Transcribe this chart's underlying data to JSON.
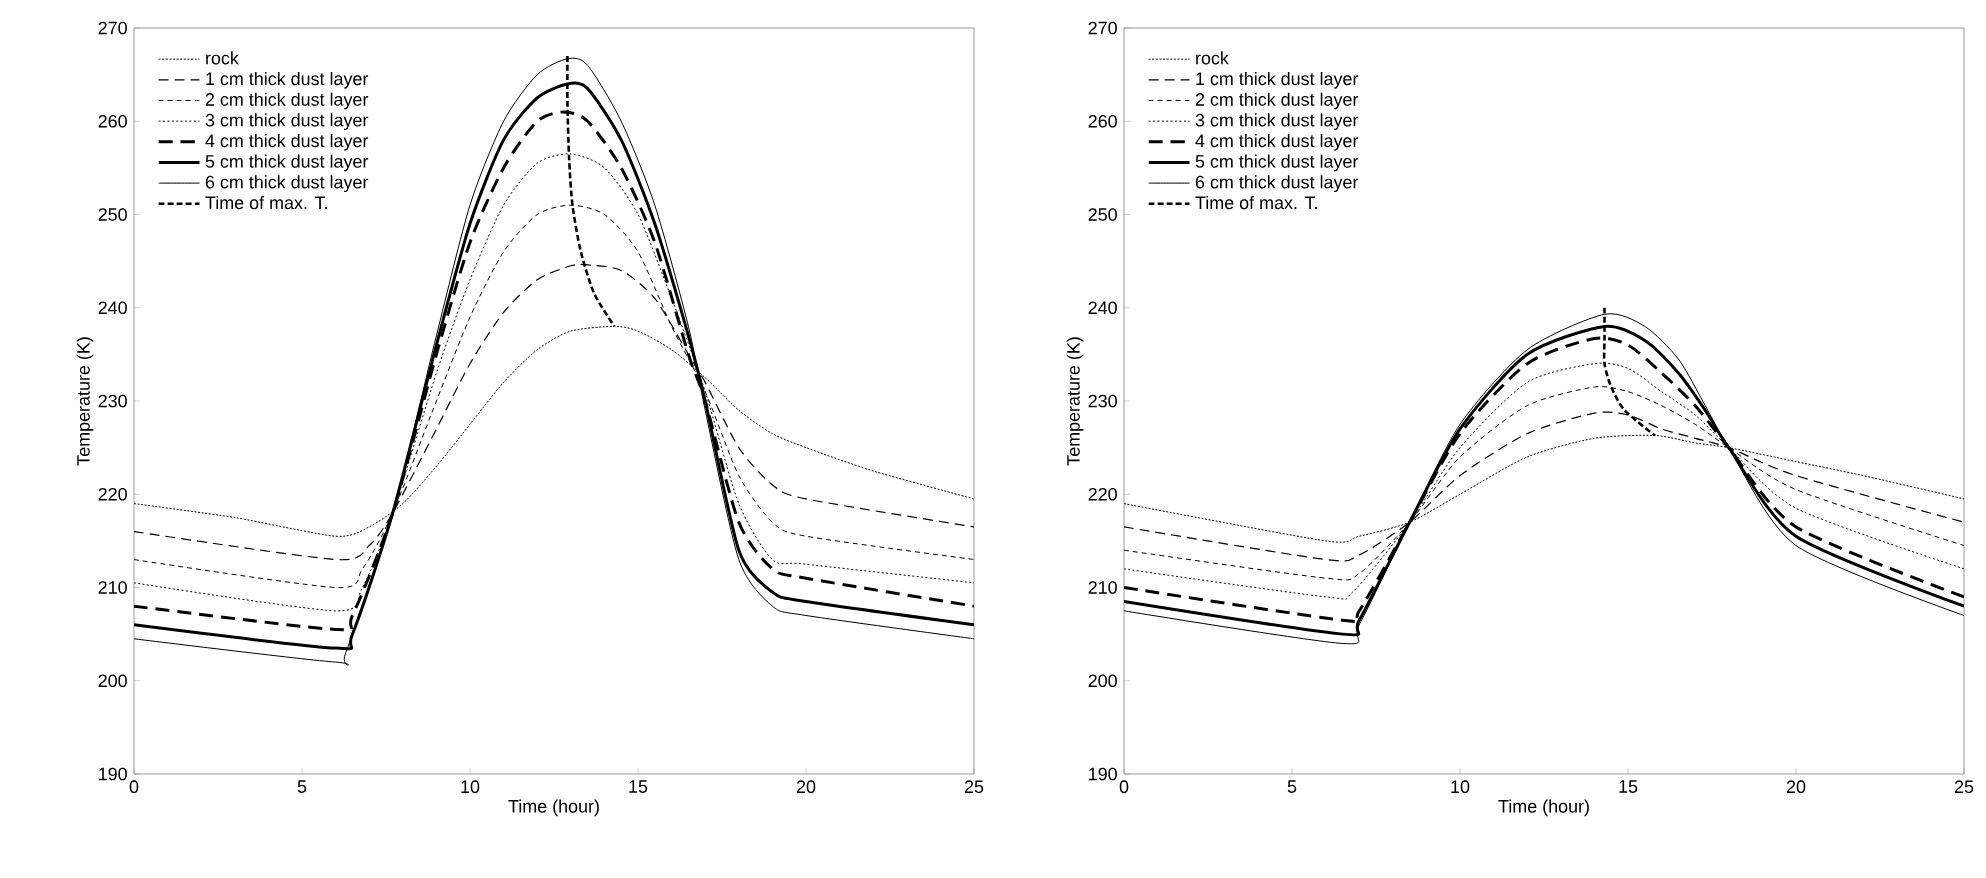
{
  "chart_data": [
    {
      "type": "line",
      "xlabel": "Time (hour)",
      "ylabel": "Temperature (K)",
      "xlim": [
        0,
        25
      ],
      "xticks": [
        0,
        5,
        10,
        15,
        20,
        25
      ],
      "ylim": [
        190,
        270
      ],
      "yticks": [
        190,
        200,
        210,
        220,
        230,
        240,
        250,
        260,
        270
      ],
      "legend": "top left",
      "marker": "none",
      "series": [
        {
          "name": "rock",
          "color": "#000000",
          "line_style": "dotted",
          "x": [
            0,
            3,
            6,
            7,
            8,
            9,
            10,
            11,
            12,
            13,
            14.3,
            15,
            16,
            17,
            18,
            19,
            20,
            22,
            25
          ],
          "values": [
            219,
            217.5,
            215.5,
            216.5,
            219,
            223,
            227.5,
            232,
            235.5,
            237.5,
            238,
            237.5,
            235.5,
            232.5,
            229,
            226.5,
            225,
            222.5,
            219.5
          ]
        },
        {
          "name": "1 cm thick dust layer",
          "color": "#000000",
          "line_style": "dashed",
          "x": [
            0,
            6,
            7,
            7.7,
            9,
            10,
            11,
            12,
            13,
            13.5,
            14.5,
            15.5,
            16.5,
            17,
            18,
            19,
            20,
            25
          ],
          "values": [
            216,
            213,
            214.5,
            218,
            227,
            234,
            239.5,
            243,
            244.5,
            244.6,
            244,
            241,
            235,
            232,
            225,
            221,
            219.5,
            216.5
          ]
        },
        {
          "name": "2 cm thick dust layer",
          "color": "#000000",
          "line_style": "dashed",
          "x": [
            0,
            6,
            6.8,
            7.7,
            9,
            10,
            11,
            12,
            13,
            14,
            15,
            16,
            17,
            18,
            19,
            20,
            25
          ],
          "values": [
            213,
            210,
            212,
            218,
            230,
            239,
            246,
            250,
            251,
            250,
            246,
            238,
            231,
            222,
            217,
            215.5,
            213
          ]
        },
        {
          "name": "3 cm thick dust layer",
          "color": "#000000",
          "line_style": "dotted",
          "x": [
            0,
            6,
            6.8,
            7.7,
            9,
            10,
            11,
            12,
            13,
            14,
            15,
            16,
            17,
            18,
            19,
            20,
            25
          ],
          "values": [
            210.5,
            207.5,
            210,
            218,
            233,
            243,
            251,
            255.5,
            256.5,
            255,
            250,
            241,
            231,
            219,
            213,
            212.5,
            210.5
          ]
        },
        {
          "name": "4 cm thick dust layer",
          "color": "#000000",
          "line_style": "dashed",
          "x": [
            0,
            6,
            6.5,
            7.7,
            9,
            10,
            11,
            12,
            12.8,
            13.5,
            14.5,
            15.5,
            16.5,
            17,
            18,
            19,
            20,
            25
          ],
          "values": [
            208,
            205.5,
            207,
            218,
            235,
            247,
            255,
            260,
            261,
            260,
            255,
            247,
            235,
            230,
            217,
            212,
            211,
            208
          ]
        },
        {
          "name": "5 cm thick dust layer",
          "color": "#000000",
          "line_style": "solid",
          "x": [
            0,
            6,
            6.5,
            7.7,
            9,
            10,
            11,
            12,
            12.9,
            13.5,
            14.5,
            15.5,
            16.5,
            17,
            18,
            19,
            20,
            25
          ],
          "values": [
            206,
            203.5,
            205,
            218,
            236,
            249,
            258,
            262.5,
            264,
            263.5,
            258,
            249,
            237,
            230,
            214,
            209.5,
            208.5,
            206
          ]
        },
        {
          "name": "6 cm thick dust layer",
          "color": "#000000",
          "line_style": "solid",
          "x": [
            0,
            6,
            6.3,
            7.7,
            9,
            10,
            11,
            12,
            12.9,
            13.5,
            14.5,
            15.5,
            16.5,
            17,
            18,
            19,
            20,
            25
          ],
          "values": [
            204.5,
            202,
            203,
            218,
            237,
            251,
            260,
            265,
            266.7,
            266,
            260,
            251,
            238,
            229,
            213,
            208,
            207,
            204.5
          ]
        },
        {
          "name": "Time of max. T.",
          "color": "#000000",
          "line_style": "dashed",
          "x": [
            12.9,
            12.9,
            12.95,
            13.05,
            13.3,
            13.7,
            14.3
          ],
          "values": [
            267,
            262,
            256,
            251,
            246,
            241.5,
            238
          ]
        }
      ]
    },
    {
      "type": "line",
      "xlabel": "Time (hour)",
      "ylabel": "Temperature (K)",
      "xlim": [
        0,
        25
      ],
      "xticks": [
        0,
        5,
        10,
        15,
        20,
        25
      ],
      "ylim": [
        190,
        270
      ],
      "yticks": [
        190,
        200,
        210,
        220,
        230,
        240,
        250,
        260,
        270
      ],
      "legend": "top left",
      "marker": "none",
      "series": [
        {
          "name": "rock",
          "color": "#000000",
          "line_style": "dotted",
          "x": [
            0,
            6,
            7,
            8.5,
            10,
            12,
            14,
            15.8,
            17,
            18,
            20,
            22,
            25
          ],
          "values": [
            219,
            215,
            215.5,
            217,
            220,
            224,
            226,
            226.3,
            225.5,
            225,
            223.5,
            222,
            219.5
          ]
        },
        {
          "name": "1 cm thick dust layer",
          "color": "#000000",
          "line_style": "dashed",
          "x": [
            0,
            6,
            7,
            8.5,
            10,
            12,
            14,
            15,
            16,
            17,
            18,
            20,
            25
          ],
          "values": [
            216.5,
            213,
            213.5,
            217,
            222,
            226.5,
            228.7,
            228.5,
            227,
            226,
            225,
            222,
            217
          ]
        },
        {
          "name": "2 cm thick dust layer",
          "color": "#000000",
          "line_style": "dashed",
          "x": [
            0,
            6,
            7,
            8.5,
            10,
            12,
            14,
            15,
            16,
            17,
            18,
            20,
            25
          ],
          "values": [
            214,
            211,
            211.5,
            217,
            224,
            229.5,
            231.5,
            231,
            229.5,
            227.5,
            225,
            220.5,
            214.5
          ]
        },
        {
          "name": "3 cm thick dust layer",
          "color": "#000000",
          "line_style": "dotted",
          "x": [
            0,
            6,
            6.8,
            8.5,
            10,
            12,
            14,
            15,
            16,
            17,
            18,
            20,
            25
          ],
          "values": [
            212,
            209,
            209.5,
            217,
            225,
            232,
            234,
            233.5,
            231,
            228.5,
            225,
            218.5,
            212
          ]
        },
        {
          "name": "4 cm thick dust layer",
          "color": "#000000",
          "line_style": "dashed",
          "x": [
            0,
            6.5,
            7,
            8.5,
            10,
            12,
            14,
            15,
            16,
            17,
            18,
            20,
            25
          ],
          "values": [
            210,
            206.5,
            207.5,
            217,
            226.5,
            234,
            236.7,
            236,
            233,
            229.5,
            225,
            216.5,
            209
          ]
        },
        {
          "name": "5 cm thick dust layer",
          "color": "#000000",
          "line_style": "solid",
          "x": [
            0,
            6.5,
            7,
            8.5,
            10,
            12,
            14.3,
            15.5,
            16.5,
            17.3,
            18,
            20,
            25
          ],
          "values": [
            208.5,
            205,
            206.5,
            217,
            227,
            235,
            238,
            236.5,
            233,
            229,
            225,
            215.5,
            208
          ]
        },
        {
          "name": "6 cm thick dust layer",
          "color": "#000000",
          "line_style": "solid",
          "x": [
            0,
            6.5,
            7,
            8.5,
            10,
            12,
            14.3,
            15.5,
            16.5,
            17.3,
            18,
            20,
            25
          ],
          "values": [
            207.5,
            204,
            206,
            217,
            227.5,
            235.5,
            239.3,
            238,
            234.5,
            229.5,
            225,
            214.5,
            207
          ]
        },
        {
          "name": "Time of max. T.",
          "color": "#000000",
          "line_style": "dashed",
          "x": [
            14.3,
            14.3,
            14.3,
            14.5,
            14.9,
            15.8
          ],
          "values": [
            240,
            236.7,
            234,
            231.5,
            229,
            226.3
          ]
        }
      ]
    }
  ]
}
